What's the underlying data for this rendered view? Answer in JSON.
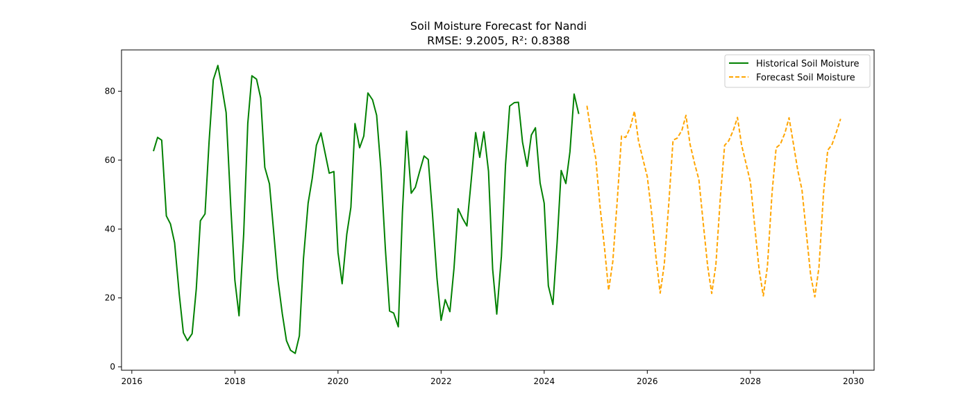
{
  "chart_data": {
    "type": "line",
    "title": "Soil Moisture Forecast for Nandi",
    "subtitle": "RMSE: 9.2005, R²: 0.8388",
    "xlabel": "",
    "ylabel": "",
    "xlim": [
      2015.8,
      2030.4
    ],
    "ylim": [
      -1,
      92
    ],
    "x_ticks": [
      2016,
      2018,
      2020,
      2022,
      2024,
      2026,
      2028,
      2030
    ],
    "y_ticks": [
      0,
      20,
      40,
      60,
      80
    ],
    "grid": false,
    "legend_position": "top-right",
    "series": [
      {
        "name": "Historical Soil Moisture",
        "color": "#008000",
        "style": "solid",
        "x": [
          2016.42,
          2016.5,
          2016.58,
          2016.67,
          2016.75,
          2016.83,
          2016.92,
          2017.0,
          2017.08,
          2017.17,
          2017.25,
          2017.33,
          2017.42,
          2017.5,
          2017.58,
          2017.67,
          2017.75,
          2017.83,
          2017.92,
          2018.0,
          2018.08,
          2018.17,
          2018.25,
          2018.33,
          2018.42,
          2018.5,
          2018.58,
          2018.67,
          2018.75,
          2018.83,
          2018.92,
          2019.0,
          2019.08,
          2019.17,
          2019.25,
          2019.33,
          2019.42,
          2019.5,
          2019.58,
          2019.67,
          2019.75,
          2019.83,
          2019.92,
          2020.0,
          2020.08,
          2020.17,
          2020.25,
          2020.33,
          2020.42,
          2020.5,
          2020.58,
          2020.67,
          2020.75,
          2020.83,
          2020.92,
          2021.0,
          2021.08,
          2021.17,
          2021.25,
          2021.33,
          2021.42,
          2021.5,
          2021.58,
          2021.67,
          2021.75,
          2021.83,
          2021.92,
          2022.0,
          2022.08,
          2022.17,
          2022.25,
          2022.33,
          2022.42,
          2022.5,
          2022.58,
          2022.67,
          2022.75,
          2022.83,
          2022.92,
          2023.0,
          2023.08,
          2023.17,
          2023.25,
          2023.33,
          2023.42,
          2023.5,
          2023.58,
          2023.67,
          2023.75,
          2023.83,
          2023.92,
          2024.0,
          2024.08,
          2024.17,
          2024.25,
          2024.33,
          2024.42,
          2024.5,
          2024.58,
          2024.67
        ],
        "y": [
          62.6,
          66.6,
          65.8,
          43.8,
          41.5,
          36.0,
          21.0,
          9.9,
          7.6,
          9.6,
          22.6,
          42.4,
          44.4,
          65.5,
          83.3,
          87.5,
          81.0,
          73.8,
          46.5,
          25.1,
          14.8,
          38.6,
          70.7,
          84.5,
          83.5,
          78.0,
          57.9,
          53.1,
          39.6,
          25.7,
          15.4,
          7.6,
          4.8,
          3.9,
          9.0,
          31.4,
          47.5,
          54.7,
          64.3,
          67.9,
          62.0,
          56.2,
          56.7,
          33.2,
          24.1,
          38.5,
          46.3,
          70.6,
          63.6,
          67.0,
          79.5,
          77.5,
          73.0,
          57.7,
          34.1,
          16.2,
          15.6,
          11.6,
          44.8,
          68.4,
          50.4,
          52.1,
          56.5,
          61.2,
          60.2,
          45.0,
          25.7,
          13.5,
          19.5,
          16.0,
          28.6,
          45.9,
          43.0,
          40.9,
          53.5,
          68.0,
          60.8,
          68.2,
          56.8,
          28.3,
          15.3,
          32.1,
          58.6,
          75.7,
          76.7,
          76.8,
          65.2,
          58.2,
          67.3,
          69.4,
          53.4,
          47.5,
          23.5,
          18.1,
          36.0,
          57.0,
          53.2,
          62.4,
          79.2,
          73.4
        ]
      },
      {
        "name": "Forecast Soil Moisture",
        "color": "#ffa500",
        "style": "dashed",
        "x": [
          2024.83,
          2024.92,
          2025.0,
          2025.08,
          2025.17,
          2025.25,
          2025.33,
          2025.42,
          2025.5,
          2025.58,
          2025.67,
          2025.75,
          2025.83,
          2025.92,
          2026.0,
          2026.08,
          2026.17,
          2026.25,
          2026.33,
          2026.42,
          2026.5,
          2026.58,
          2026.67,
          2026.75,
          2026.83,
          2026.92,
          2027.0,
          2027.08,
          2027.17,
          2027.25,
          2027.33,
          2027.42,
          2027.5,
          2027.58,
          2027.67,
          2027.75,
          2027.83,
          2027.92,
          2028.0,
          2028.08,
          2028.17,
          2028.25,
          2028.33,
          2028.42,
          2028.5,
          2028.58,
          2028.67,
          2028.75,
          2028.83,
          2028.92,
          2029.0,
          2029.08,
          2029.17,
          2029.25,
          2029.33,
          2029.42,
          2029.5,
          2029.58,
          2029.67,
          2029.75
        ],
        "y": [
          75.8,
          67.0,
          60.5,
          47.0,
          34.5,
          22.2,
          30.5,
          49.0,
          67.0,
          66.6,
          69.5,
          74.2,
          65.5,
          60.0,
          55.2,
          45.1,
          31.7,
          21.4,
          29.8,
          48.0,
          65.8,
          66.4,
          68.6,
          73.0,
          64.6,
          58.9,
          54.4,
          42.5,
          29.3,
          21.3,
          29.6,
          49.6,
          64.3,
          65.6,
          68.7,
          72.4,
          64.3,
          58.7,
          53.7,
          41.5,
          28.2,
          20.6,
          29.0,
          50.5,
          63.6,
          64.6,
          67.9,
          72.3,
          65.2,
          57.0,
          51.4,
          39.6,
          26.5,
          20.3,
          28.9,
          50.6,
          62.9,
          64.4,
          68.2,
          72.0
        ]
      }
    ]
  }
}
